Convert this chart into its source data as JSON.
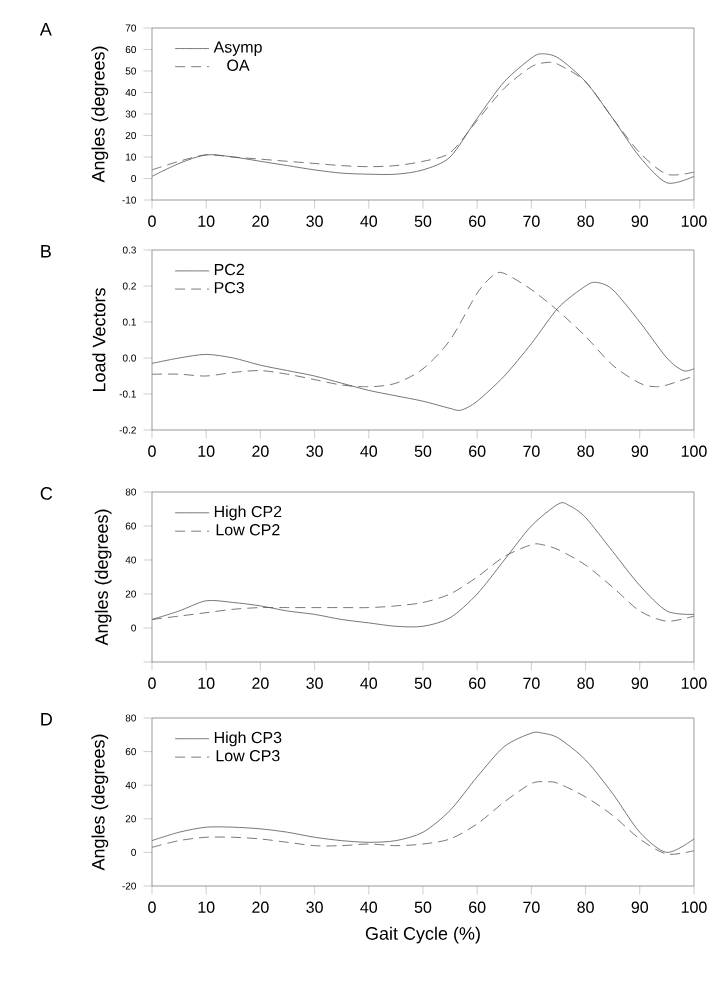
{
  "chart_data": [
    {
      "type": "line",
      "title": "A",
      "ylabel": "Angles (degrees)",
      "xlim": [
        0,
        100
      ],
      "xticks": [
        0,
        10,
        20,
        30,
        40,
        50,
        60,
        70,
        80,
        90,
        100
      ],
      "ylim": [
        -10,
        70
      ],
      "yticks": [
        -10,
        0,
        10,
        20,
        30,
        40,
        50,
        60,
        70
      ],
      "legend": "top left",
      "series": [
        {
          "name": "Asymp",
          "color": "#555555",
          "line_style": "solid",
          "x": [
            0,
            5,
            10,
            15,
            20,
            25,
            30,
            35,
            40,
            45,
            50,
            55,
            60,
            65,
            70,
            72,
            75,
            80,
            85,
            90,
            95,
            100
          ],
          "values": [
            1,
            7,
            11,
            10,
            8,
            6,
            4,
            2.5,
            2,
            2,
            4,
            10,
            28,
            45,
            56,
            58,
            56,
            45,
            28,
            10,
            -2,
            1
          ]
        },
        {
          "name": "OA",
          "color": "#555555",
          "line_style": "dashed",
          "x": [
            0,
            5,
            10,
            15,
            20,
            25,
            30,
            35,
            40,
            45,
            50,
            55,
            60,
            65,
            70,
            73,
            75,
            80,
            85,
            90,
            95,
            100
          ],
          "values": [
            4,
            8,
            11,
            10,
            9,
            8,
            7,
            6,
            5.5,
            6,
            8,
            12,
            27,
            42,
            52,
            54,
            53,
            45,
            28,
            12,
            2,
            3
          ]
        }
      ]
    },
    {
      "type": "line",
      "title": "B",
      "ylabel": "Load Vectors",
      "xlim": [
        0,
        100
      ],
      "xticks": [
        0,
        10,
        20,
        30,
        40,
        50,
        60,
        70,
        80,
        90,
        100
      ],
      "ylim": [
        -0.2,
        0.3
      ],
      "yticks": [
        {
          "value": -0.2,
          "label": "-0.2"
        },
        {
          "value": -0.1,
          "label": "-0.1"
        },
        {
          "value": 0,
          "label": "0.0"
        },
        {
          "value": 0.1,
          "label": "0.1"
        },
        {
          "value": 0.2,
          "label": "0.2"
        },
        {
          "value": 0.3,
          "label": "0.3"
        }
      ],
      "legend": "top left",
      "series": [
        {
          "name": "PC2",
          "color": "#555555",
          "line_style": "solid",
          "x": [
            0,
            5,
            10,
            15,
            20,
            25,
            30,
            35,
            40,
            45,
            50,
            55,
            57,
            60,
            65,
            70,
            75,
            80,
            82,
            85,
            90,
            95,
            98,
            100
          ],
          "values": [
            -0.015,
            0,
            0.01,
            0,
            -0.02,
            -0.035,
            -0.05,
            -0.07,
            -0.09,
            -0.105,
            -0.12,
            -0.14,
            -0.145,
            -0.12,
            -0.05,
            0.04,
            0.14,
            0.2,
            0.21,
            0.19,
            0.1,
            0,
            -0.035,
            -0.03
          ]
        },
        {
          "name": "PC3",
          "color": "#555555",
          "line_style": "dashed",
          "x": [
            0,
            5,
            10,
            15,
            20,
            25,
            30,
            35,
            40,
            45,
            50,
            55,
            60,
            63,
            65,
            70,
            75,
            80,
            85,
            90,
            93,
            95,
            100
          ],
          "values": [
            -0.045,
            -0.045,
            -0.05,
            -0.04,
            -0.035,
            -0.045,
            -0.06,
            -0.075,
            -0.08,
            -0.07,
            -0.03,
            0.05,
            0.18,
            0.23,
            0.235,
            0.19,
            0.13,
            0.06,
            -0.02,
            -0.07,
            -0.08,
            -0.075,
            -0.05
          ]
        }
      ]
    },
    {
      "type": "line",
      "title": "C",
      "ylabel": "Angles (degrees)",
      "xlim": [
        0,
        100
      ],
      "xticks": [
        0,
        10,
        20,
        30,
        40,
        50,
        60,
        70,
        80,
        90,
        100
      ],
      "ylim": [
        -20,
        80
      ],
      "yticks": [
        {
          "value": -20,
          "label": null
        },
        0,
        20,
        40,
        60,
        80
      ],
      "legend": "top left",
      "series": [
        {
          "name": "High CP2",
          "color": "#555555",
          "line_style": "solid",
          "x": [
            0,
            5,
            10,
            15,
            20,
            25,
            30,
            35,
            40,
            45,
            50,
            55,
            60,
            65,
            70,
            75,
            77,
            80,
            85,
            90,
            95,
            100
          ],
          "values": [
            5,
            10,
            16,
            15,
            13,
            10,
            8,
            5,
            3,
            1,
            1,
            6,
            20,
            40,
            60,
            73,
            72,
            65,
            45,
            25,
            10,
            8
          ]
        },
        {
          "name": "Low CP2",
          "color": "#555555",
          "line_style": "dashed",
          "x": [
            0,
            5,
            10,
            15,
            20,
            25,
            30,
            35,
            40,
            45,
            50,
            55,
            60,
            65,
            70,
            72,
            75,
            80,
            85,
            90,
            95,
            100
          ],
          "values": [
            5,
            7,
            9,
            11,
            12,
            12,
            12,
            12,
            12,
            13,
            15,
            20,
            30,
            42,
            49,
            49,
            46,
            37,
            24,
            10,
            4,
            7
          ]
        }
      ]
    },
    {
      "type": "line",
      "title": "D",
      "xlabel": "Gait Cycle (%)",
      "ylabel": "Angles (degrees)",
      "xlim": [
        0,
        100
      ],
      "xticks": [
        0,
        10,
        20,
        30,
        40,
        50,
        60,
        70,
        80,
        90,
        100
      ],
      "ylim": [
        -20,
        80
      ],
      "yticks": [
        -20,
        0,
        20,
        40,
        60,
        80
      ],
      "legend": "top left",
      "series": [
        {
          "name": "High CP3",
          "color": "#555555",
          "line_style": "solid",
          "x": [
            0,
            5,
            10,
            15,
            20,
            25,
            30,
            35,
            40,
            45,
            50,
            55,
            60,
            65,
            70,
            72,
            75,
            80,
            85,
            90,
            95,
            100
          ],
          "values": [
            7,
            12,
            15,
            15,
            14,
            12,
            9,
            7,
            6,
            7,
            12,
            25,
            45,
            63,
            71,
            71,
            68,
            55,
            35,
            12,
            0,
            8
          ]
        },
        {
          "name": "Low CP3",
          "color": "#555555",
          "line_style": "dashed",
          "x": [
            0,
            5,
            10,
            15,
            20,
            25,
            30,
            35,
            40,
            45,
            50,
            55,
            60,
            65,
            70,
            73,
            75,
            80,
            85,
            90,
            95,
            100
          ],
          "values": [
            3,
            7,
            9,
            9,
            8,
            6,
            4,
            4,
            5,
            4,
            5,
            8,
            17,
            30,
            41,
            42,
            41,
            33,
            22,
            8,
            -1,
            1
          ]
        }
      ]
    }
  ]
}
